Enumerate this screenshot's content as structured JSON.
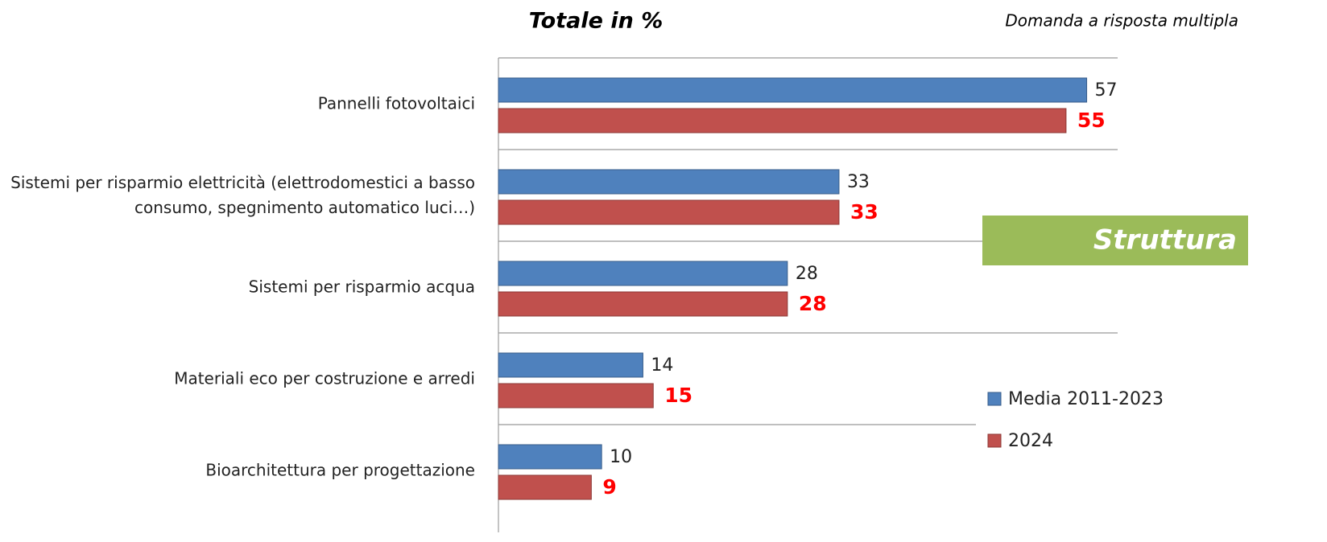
{
  "chart_data": {
    "type": "hbar",
    "title": "Totale in %",
    "subtitle": "Domanda a risposta multipla",
    "annotation": "Struttura",
    "categories": [
      "Pannelli fotovoltaici",
      "Sistemi per risparmio elettricità (elettrodomestici a basso consumo, spegnimento automatico luci…)",
      "Sistemi per risparmio acqua",
      "Materiali eco per costruzione e arredi",
      "Bioarchitettura per progettazione"
    ],
    "series": [
      {
        "name": "Media 2011-2023",
        "color": "#4f81bd",
        "values": [
          57,
          33,
          28,
          14,
          10
        ]
      },
      {
        "name": "2024",
        "color": "#c0504d",
        "values": [
          55,
          33,
          28,
          15,
          9
        ]
      }
    ],
    "xlim": [
      0,
      60
    ],
    "grid": true,
    "legend": "right"
  }
}
